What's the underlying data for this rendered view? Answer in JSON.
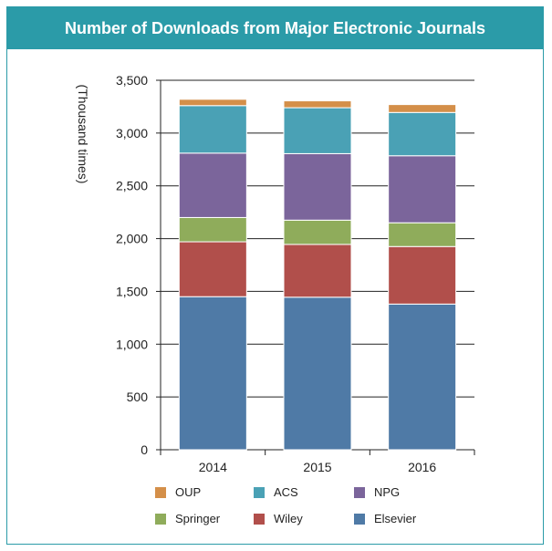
{
  "chart_data": {
    "type": "bar",
    "stacked": true,
    "title": "Number of Downloads from Major Electronic Journals",
    "xlabel": "",
    "ylabel": "(Thousand times)",
    "ylim": [
      0,
      3500
    ],
    "yticks": [
      0,
      500,
      1000,
      1500,
      2000,
      2500,
      3000,
      3500
    ],
    "ytick_labels": [
      "0",
      "500",
      "1,000",
      "1,500",
      "2,000",
      "2,500",
      "3,000",
      "3,500"
    ],
    "categories": [
      "2014",
      "2015",
      "2016"
    ],
    "grid": true,
    "series": [
      {
        "name": "Elsevier",
        "color": "#4f7aa6",
        "values": [
          1450,
          1445,
          1380
        ]
      },
      {
        "name": "Wiley",
        "color": "#b14f4b",
        "values": [
          520,
          500,
          545
        ]
      },
      {
        "name": "Springer",
        "color": "#8fac5b",
        "values": [
          230,
          230,
          225
        ]
      },
      {
        "name": "NPG",
        "color": "#7b659b",
        "values": [
          610,
          630,
          635
        ]
      },
      {
        "name": "ACS",
        "color": "#4aa1b5",
        "values": [
          450,
          435,
          410
        ]
      },
      {
        "name": "OUP",
        "color": "#d48f49",
        "values": [
          60,
          65,
          75
        ]
      }
    ],
    "legend_order": [
      "OUP",
      "ACS",
      "NPG",
      "Springer",
      "Wiley",
      "Elsevier"
    ],
    "legend_position": "bottom"
  }
}
